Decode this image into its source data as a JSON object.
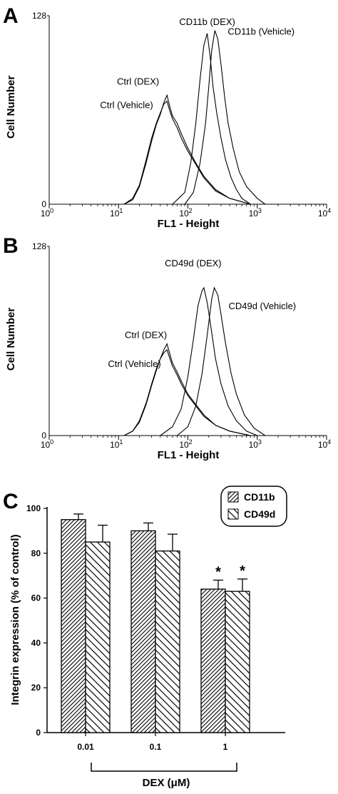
{
  "chart_data": [
    {
      "panel": "A",
      "type": "line",
      "xscale": "log",
      "xlim": [
        1,
        10000
      ],
      "ylim": [
        0,
        128
      ],
      "xlabel": "FL1 - Height",
      "ylabel": "Cell Number",
      "ytick_labels": [
        "0",
        "128"
      ],
      "xtick_labels": [
        {
          "base": "10",
          "exp": "0",
          "value": 1
        },
        {
          "base": "10",
          "exp": "1",
          "value": 10
        },
        {
          "base": "10",
          "exp": "2",
          "value": 100
        },
        {
          "base": "10",
          "exp": "3",
          "value": 1000
        },
        {
          "base": "10",
          "exp": "4",
          "value": 10000
        }
      ],
      "series": [
        {
          "name": "Ctrl (Vehicle)",
          "peak_x": 45,
          "peak_y": 70,
          "x": [
            12,
            16,
            20,
            25,
            30,
            35,
            40,
            45,
            50,
            55,
            60,
            70,
            80,
            100,
            130,
            170,
            250,
            400,
            800
          ],
          "y": [
            0,
            4,
            13,
            30,
            45,
            55,
            62,
            68,
            70,
            63,
            58,
            52,
            45,
            36,
            27,
            18,
            9,
            4,
            0
          ]
        },
        {
          "name": "Ctrl (DEX)",
          "peak_x": 50,
          "peak_y": 74,
          "x": [
            12,
            16,
            20,
            25,
            30,
            35,
            40,
            45,
            50,
            55,
            60,
            70,
            80,
            100,
            130,
            170,
            250,
            400,
            800
          ],
          "y": [
            0,
            3,
            12,
            28,
            43,
            54,
            61,
            69,
            74,
            66,
            60,
            55,
            48,
            38,
            28,
            19,
            10,
            4,
            0
          ]
        },
        {
          "name": "CD11b (DEX)",
          "peak_x": 190,
          "peak_y": 116,
          "x": [
            60,
            90,
            110,
            130,
            150,
            170,
            190,
            210,
            230,
            260,
            300,
            350,
            420,
            500,
            600,
            800
          ],
          "y": [
            0,
            8,
            28,
            55,
            85,
            108,
            116,
            100,
            80,
            62,
            45,
            30,
            18,
            10,
            4,
            0
          ]
        },
        {
          "name": "CD11b (Vehicle)",
          "peak_x": 245,
          "peak_y": 118,
          "x": [
            90,
            120,
            150,
            180,
            200,
            220,
            245,
            270,
            300,
            340,
            380,
            450,
            550,
            700,
            1000,
            1300
          ],
          "y": [
            0,
            8,
            28,
            55,
            80,
            104,
            118,
            112,
            95,
            72,
            55,
            38,
            22,
            12,
            4,
            0
          ]
        }
      ],
      "annotations": [
        "CD11b (DEX)",
        "CD11b (Vehicle)",
        "Ctrl (DEX)",
        "Ctrl (Vehicle)"
      ]
    },
    {
      "panel": "B",
      "type": "line",
      "xscale": "log",
      "xlim": [
        1,
        10000
      ],
      "ylim": [
        0,
        128
      ],
      "xlabel": "FL1 - Height",
      "ylabel": "Cell Number",
      "ytick_labels": [
        "0",
        "128"
      ],
      "xtick_labels": [
        {
          "base": "10",
          "exp": "0",
          "value": 1
        },
        {
          "base": "10",
          "exp": "1",
          "value": 10
        },
        {
          "base": "10",
          "exp": "2",
          "value": 100
        },
        {
          "base": "10",
          "exp": "3",
          "value": 1000
        },
        {
          "base": "10",
          "exp": "4",
          "value": 10000
        }
      ],
      "series": [
        {
          "name": "Ctrl (Vehicle)",
          "peak_x": 45,
          "peak_y": 58,
          "x": [
            12,
            16,
            20,
            25,
            30,
            35,
            40,
            45,
            50,
            55,
            60,
            70,
            80,
            100,
            130,
            170,
            250,
            400,
            800
          ],
          "y": [
            0,
            3,
            10,
            22,
            35,
            45,
            52,
            56,
            58,
            52,
            47,
            41,
            35,
            27,
            20,
            13,
            7,
            3,
            0
          ]
        },
        {
          "name": "Ctrl (DEX)",
          "peak_x": 50,
          "peak_y": 62,
          "x": [
            12,
            16,
            20,
            25,
            30,
            35,
            40,
            45,
            50,
            55,
            60,
            70,
            80,
            100,
            130,
            170,
            250,
            400,
            800
          ],
          "y": [
            0,
            3,
            9,
            21,
            34,
            44,
            52,
            58,
            62,
            55,
            49,
            43,
            37,
            28,
            21,
            14,
            7,
            3,
            0
          ]
        },
        {
          "name": "CD49d (DEX)",
          "peak_x": 170,
          "peak_y": 100,
          "x": [
            40,
            60,
            80,
            100,
            120,
            140,
            160,
            170,
            190,
            220,
            250,
            300,
            380,
            500,
            700,
            1000
          ],
          "y": [
            0,
            6,
            18,
            40,
            65,
            88,
            98,
            100,
            90,
            70,
            52,
            35,
            20,
            10,
            3,
            0
          ]
        },
        {
          "name": "CD49d (Vehicle)",
          "peak_x": 240,
          "peak_y": 100,
          "x": [
            70,
            100,
            130,
            160,
            190,
            220,
            240,
            270,
            300,
            350,
            420,
            500,
            650,
            900,
            1300
          ],
          "y": [
            0,
            6,
            20,
            42,
            68,
            92,
            100,
            95,
            82,
            62,
            42,
            28,
            14,
            5,
            0
          ]
        }
      ],
      "annotations": [
        "CD49d (DEX)",
        "CD49d (Vehicle)",
        "Ctrl (DEX)",
        "Ctrl (Vehicle)"
      ]
    },
    {
      "panel": "C",
      "type": "bar",
      "categories": [
        "0.01",
        "0.1",
        "1"
      ],
      "xlabel_prefix": "DEX (",
      "xlabel_mu": "μ",
      "xlabel_suffix": "M)",
      "ylabel": "Integrin expression (% of control)",
      "ylim": [
        0,
        100
      ],
      "yticks": [
        "0",
        "20",
        "40",
        "60",
        "80",
        "100"
      ],
      "series": [
        {
          "name": "CD11b",
          "values": [
            95,
            90,
            64
          ],
          "errors": [
            2.5,
            3.5,
            4
          ],
          "pattern": "backslash-dense"
        },
        {
          "name": "CD49d",
          "values": [
            85,
            81,
            63
          ],
          "errors": [
            7.5,
            7.5,
            5.5
          ],
          "pattern": "slash-wide"
        }
      ],
      "significance": [
        "",
        "",
        "*"
      ],
      "significance_mark": "*",
      "legend_position": "top-right"
    }
  ],
  "panel_letters": [
    "A",
    "B",
    "C"
  ]
}
